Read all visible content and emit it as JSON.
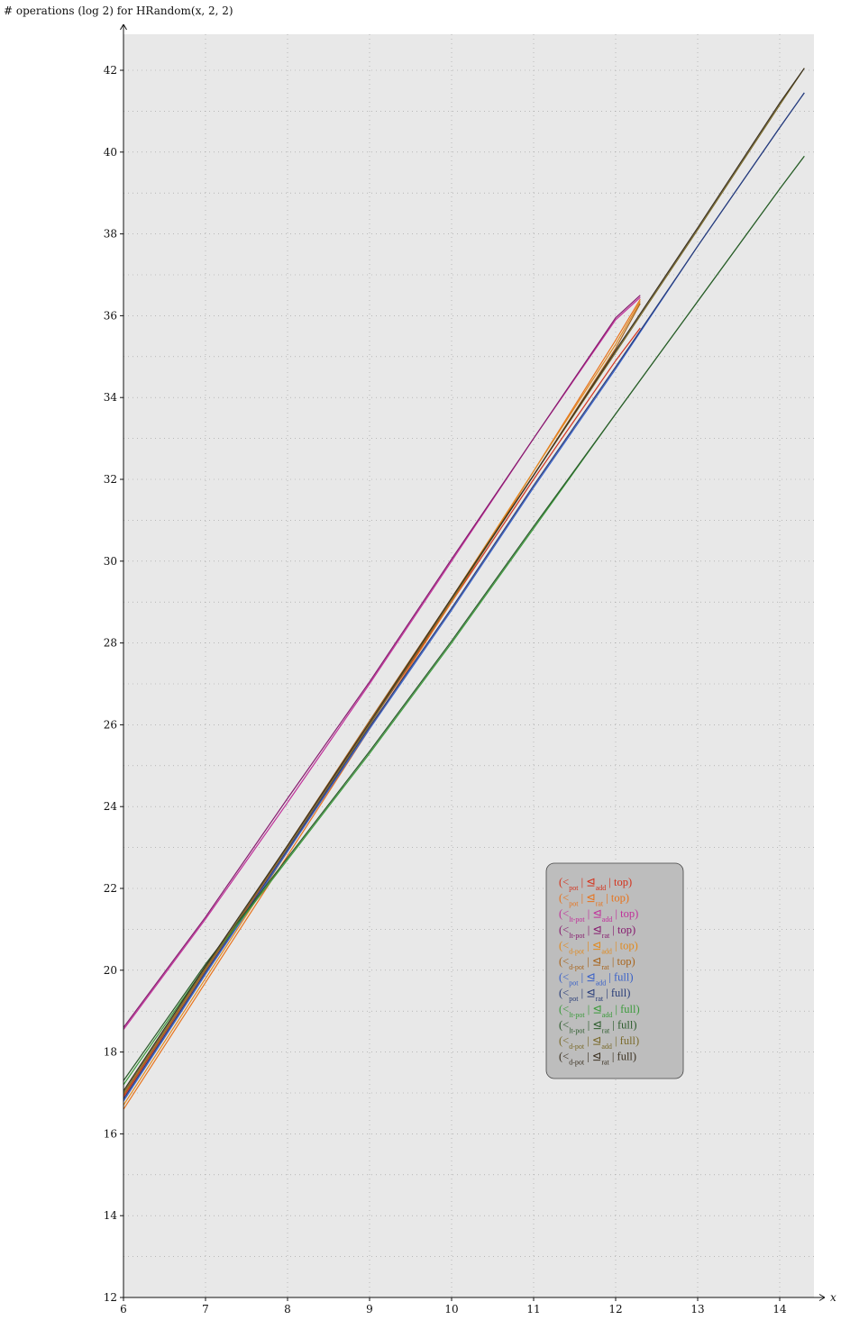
{
  "chart_data": {
    "type": "line",
    "ylabel": "# operations (log 2) for HRandom(x, 2, 2)",
    "xlabel": "x",
    "xlim": [
      6,
      14.45
    ],
    "ylim": [
      12,
      42.9
    ],
    "x_ticks": [
      "6",
      "7",
      "8",
      "9",
      "10",
      "11",
      "12",
      "13",
      "14"
    ],
    "y_ticks": [
      "12",
      "14",
      "16",
      "18",
      "20",
      "22",
      "24",
      "26",
      "28",
      "30",
      "32",
      "34",
      "36",
      "38",
      "40",
      "42"
    ],
    "grid": true,
    "background": "#e8e8e8",
    "legend_position": "lower-right",
    "series": [
      {
        "label_main": "(<",
        "label_sub1": "pot",
        "label_mid": " | ⊴",
        "label_sub2": "add",
        "label_end": " | top)",
        "color": "#d4321c",
        "points": [
          [
            6,
            16.9
          ],
          [
            7,
            20.0
          ],
          [
            8,
            23.0
          ],
          [
            9,
            26.0
          ],
          [
            10,
            29.0
          ],
          [
            11,
            32.0
          ],
          [
            12,
            34.9
          ],
          [
            12.3,
            35.7
          ]
        ]
      },
      {
        "label_main": "(<",
        "label_sub1": "pot",
        "label_mid": " | ⊴",
        "label_sub2": "rat",
        "label_end": " | top)",
        "color": "#e8731c",
        "points": [
          [
            6,
            16.6
          ],
          [
            7,
            19.7
          ],
          [
            8,
            22.8
          ],
          [
            9,
            25.9
          ],
          [
            10,
            29.0
          ],
          [
            11,
            32.2
          ],
          [
            12,
            35.4
          ],
          [
            12.3,
            36.4
          ]
        ]
      },
      {
        "label_main": "(<",
        "label_sub1": "lt-pot",
        "label_mid": " | ⊴",
        "label_sub2": "add",
        "label_end": " | top)",
        "color": "#c0309a",
        "points": [
          [
            6,
            18.55
          ],
          [
            7,
            21.25
          ],
          [
            8,
            24.1
          ],
          [
            9,
            27.0
          ],
          [
            10,
            30.0
          ],
          [
            11,
            33.0
          ],
          [
            12,
            35.9
          ],
          [
            12.3,
            36.45
          ]
        ]
      },
      {
        "label_main": "(<",
        "label_sub1": "lt-pot",
        "label_mid": " | ⊴",
        "label_sub2": "rat",
        "label_end": " | top)",
        "color": "#861b6e",
        "points": [
          [
            6,
            18.6
          ],
          [
            7,
            21.3
          ],
          [
            8,
            24.2
          ],
          [
            9,
            27.05
          ],
          [
            10,
            30.05
          ],
          [
            11,
            33.0
          ],
          [
            12,
            35.95
          ],
          [
            12.3,
            36.5
          ]
        ]
      },
      {
        "label_main": "(<",
        "label_sub1": "d-pot",
        "label_mid": " | ⊴",
        "label_sub2": "add",
        "label_end": " | top)",
        "color": "#e08a20",
        "points": [
          [
            6,
            16.7
          ],
          [
            7,
            19.8
          ],
          [
            8,
            22.9
          ],
          [
            9,
            26.0
          ],
          [
            10,
            29.1
          ],
          [
            11,
            32.2
          ],
          [
            12,
            35.3
          ],
          [
            12.3,
            36.35
          ]
        ]
      },
      {
        "label_main": "(<",
        "label_sub1": "d-pot",
        "label_mid": " | ⊴",
        "label_sub2": "rat",
        "label_end": " | top)",
        "color": "#a8641c",
        "points": [
          [
            6,
            16.95
          ],
          [
            7,
            20.0
          ],
          [
            8,
            23.05
          ],
          [
            9,
            26.1
          ],
          [
            10,
            29.1
          ],
          [
            11,
            32.1
          ],
          [
            12,
            35.2
          ],
          [
            12.3,
            36.3
          ]
        ]
      },
      {
        "label_main": "(<",
        "label_sub1": "pot",
        "label_mid": " | ⊴",
        "label_sub2": "add",
        "label_end": " | full)",
        "color": "#3860c8",
        "points": [
          [
            6,
            16.8
          ],
          [
            7,
            19.9
          ],
          [
            8,
            22.9
          ],
          [
            9,
            25.9
          ],
          [
            10,
            28.8
          ],
          [
            11,
            31.8
          ],
          [
            12,
            34.7
          ],
          [
            13,
            37.7
          ],
          [
            14,
            40.6
          ],
          [
            14.3,
            41.45
          ]
        ]
      },
      {
        "label_main": "(<",
        "label_sub1": "pot",
        "label_mid": " | ⊴",
        "label_sub2": "rat",
        "label_end": " | full)",
        "color": "#283c78",
        "points": [
          [
            6,
            16.85
          ],
          [
            7,
            19.95
          ],
          [
            8,
            22.95
          ],
          [
            9,
            25.95
          ],
          [
            10,
            28.85
          ],
          [
            11,
            31.85
          ],
          [
            12,
            34.75
          ],
          [
            13,
            37.7
          ],
          [
            14,
            40.6
          ],
          [
            14.3,
            41.45
          ]
        ]
      },
      {
        "label_main": "(<",
        "label_sub1": "lt-pot",
        "label_mid": " | ⊴",
        "label_sub2": "add",
        "label_end": " | full)",
        "color": "#3a9a3a",
        "points": [
          [
            6,
            17.2
          ],
          [
            7,
            20.1
          ],
          [
            8,
            22.7
          ],
          [
            9,
            25.3
          ],
          [
            10,
            28.0
          ],
          [
            11,
            30.8
          ],
          [
            12,
            33.6
          ],
          [
            13,
            36.35
          ],
          [
            14,
            39.1
          ],
          [
            14.3,
            39.9
          ]
        ]
      },
      {
        "label_main": "(<",
        "label_sub1": "lt-pot",
        "label_mid": " | ⊴",
        "label_sub2": "rat",
        "label_end": " | full)",
        "color": "#2a5a2a",
        "points": [
          [
            6,
            17.3
          ],
          [
            7,
            20.15
          ],
          [
            8,
            22.75
          ],
          [
            9,
            25.35
          ],
          [
            10,
            28.05
          ],
          [
            11,
            30.85
          ],
          [
            12,
            33.6
          ],
          [
            13,
            36.35
          ],
          [
            14,
            39.1
          ],
          [
            14.3,
            39.9
          ]
        ]
      },
      {
        "label_main": "(<",
        "label_sub1": "d-pot",
        "label_mid": " | ⊴",
        "label_sub2": "add",
        "label_end": " | full)",
        "color": "#7a6a2a",
        "points": [
          [
            6,
            17.0
          ],
          [
            7,
            20.05
          ],
          [
            8,
            23.0
          ],
          [
            9,
            26.0
          ],
          [
            10,
            29.05
          ],
          [
            11,
            32.1
          ],
          [
            12,
            35.1
          ],
          [
            13,
            38.1
          ],
          [
            14,
            41.15
          ],
          [
            14.3,
            42.05
          ]
        ]
      },
      {
        "label_main": "(<",
        "label_sub1": "d-pot",
        "label_mid": " | ⊴",
        "label_sub2": "rat",
        "label_end": " | full)",
        "color": "#3a3020",
        "points": [
          [
            6,
            17.05
          ],
          [
            7,
            20.1
          ],
          [
            8,
            23.05
          ],
          [
            9,
            26.05
          ],
          [
            10,
            29.1
          ],
          [
            11,
            32.1
          ],
          [
            12,
            35.15
          ],
          [
            13,
            38.15
          ],
          [
            14,
            41.2
          ],
          [
            14.3,
            42.05
          ]
        ]
      }
    ]
  }
}
